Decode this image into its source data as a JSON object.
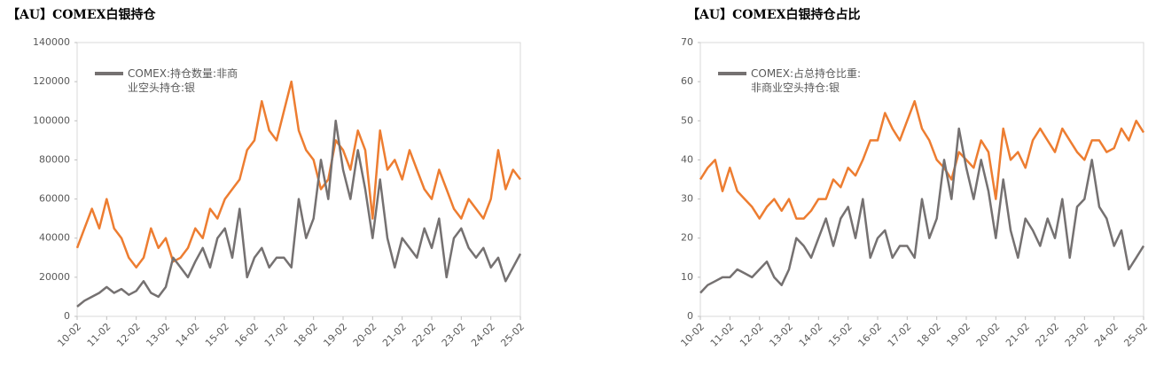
{
  "chart_data": [
    {
      "type": "line",
      "title": "【AU】COMEX白银持仓",
      "categories": [
        "10-02",
        null,
        null,
        null,
        "11-02",
        null,
        null,
        null,
        "12-02",
        null,
        null,
        null,
        "13-02",
        null,
        null,
        null,
        "14-02",
        null,
        null,
        null,
        "15-02",
        null,
        null,
        null,
        "16-02",
        null,
        null,
        null,
        "17-02",
        null,
        null,
        null,
        "18-02",
        null,
        null,
        null,
        "19-02",
        null,
        null,
        null,
        "20-02",
        null,
        null,
        null,
        "21-02",
        null,
        null,
        null,
        "22-02",
        null,
        null,
        null,
        "23-02",
        null,
        null,
        null,
        "24-02",
        null,
        null,
        null,
        "25-02"
      ],
      "series": [
        {
          "name": "COMEX:持仓数量:非商业空头持仓:银",
          "color": "#757171",
          "values": [
            5000,
            8000,
            10000,
            12000,
            15000,
            12000,
            14000,
            11000,
            13000,
            18000,
            12000,
            10000,
            15000,
            30000,
            25000,
            20000,
            28000,
            35000,
            25000,
            40000,
            45000,
            30000,
            55000,
            20000,
            30000,
            35000,
            25000,
            30000,
            30000,
            25000,
            60000,
            40000,
            50000,
            80000,
            60000,
            100000,
            75000,
            60000,
            85000,
            65000,
            40000,
            70000,
            40000,
            25000,
            40000,
            35000,
            30000,
            45000,
            35000,
            50000,
            20000,
            40000,
            45000,
            35000,
            30000,
            35000,
            25000,
            30000,
            18000,
            25000,
            32000
          ]
        },
        {
          "color": "#ed7d31",
          "values": [
            35000,
            45000,
            55000,
            45000,
            60000,
            45000,
            40000,
            30000,
            25000,
            30000,
            45000,
            35000,
            40000,
            28000,
            30000,
            35000,
            45000,
            40000,
            55000,
            50000,
            60000,
            65000,
            70000,
            85000,
            90000,
            110000,
            95000,
            90000,
            105000,
            120000,
            95000,
            85000,
            80000,
            65000,
            70000,
            90000,
            85000,
            75000,
            95000,
            85000,
            50000,
            95000,
            75000,
            80000,
            70000,
            85000,
            75000,
            65000,
            60000,
            75000,
            65000,
            55000,
            50000,
            60000,
            55000,
            50000,
            60000,
            85000,
            65000,
            75000,
            70000
          ]
        }
      ],
      "ylim": [
        0,
        140000
      ],
      "yticks": [
        0,
        20000,
        40000,
        60000,
        80000,
        100000,
        120000,
        140000
      ]
    },
    {
      "type": "line",
      "title": "【AU】COMEX白银持仓占比",
      "categories": [
        "10-02",
        null,
        null,
        null,
        "11-02",
        null,
        null,
        null,
        "12-02",
        null,
        null,
        null,
        "13-02",
        null,
        null,
        null,
        "14-02",
        null,
        null,
        null,
        "15-02",
        null,
        null,
        null,
        "16-02",
        null,
        null,
        null,
        "17-02",
        null,
        null,
        null,
        "18-02",
        null,
        null,
        null,
        "19-02",
        null,
        null,
        null,
        "20-02",
        null,
        null,
        null,
        "21-02",
        null,
        null,
        null,
        "22-02",
        null,
        null,
        null,
        "23-02",
        null,
        null,
        null,
        "24-02",
        null,
        null,
        null,
        "25-02"
      ],
      "series": [
        {
          "name": "COMEX:占总持仓比重:非商业空头持仓:银",
          "color": "#757171",
          "values": [
            6,
            8,
            9,
            10,
            10,
            12,
            11,
            10,
            12,
            14,
            10,
            8,
            12,
            20,
            18,
            15,
            20,
            25,
            18,
            25,
            28,
            20,
            30,
            15,
            20,
            22,
            15,
            18,
            18,
            15,
            30,
            20,
            25,
            40,
            30,
            48,
            38,
            30,
            40,
            32,
            20,
            35,
            22,
            15,
            25,
            22,
            18,
            25,
            20,
            30,
            15,
            28,
            30,
            40,
            28,
            25,
            18,
            22,
            12,
            15,
            18
          ]
        },
        {
          "color": "#ed7d31",
          "values": [
            35,
            38,
            40,
            32,
            38,
            32,
            30,
            28,
            25,
            28,
            30,
            27,
            30,
            25,
            25,
            27,
            30,
            30,
            35,
            33,
            38,
            36,
            40,
            45,
            45,
            52,
            48,
            45,
            50,
            55,
            48,
            45,
            40,
            38,
            35,
            42,
            40,
            38,
            45,
            42,
            30,
            48,
            40,
            42,
            38,
            45,
            48,
            45,
            42,
            48,
            45,
            42,
            40,
            45,
            45,
            42,
            43,
            48,
            45,
            50,
            47
          ]
        }
      ],
      "ylim": [
        0,
        70
      ],
      "yticks": [
        0,
        10,
        20,
        30,
        40,
        50,
        60,
        70
      ]
    }
  ]
}
